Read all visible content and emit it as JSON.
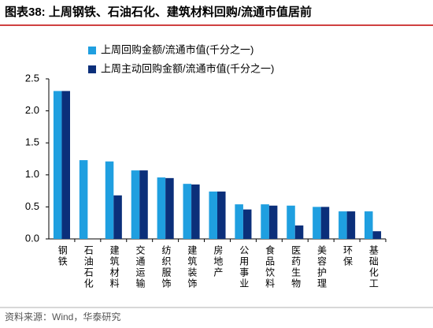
{
  "chart_data": {
    "type": "bar",
    "title": "图表38:  上周钢铁、石油石化、建筑材料回购/流通市值居前",
    "source": "资料来源：Wind，华泰研究",
    "categories": [
      "钢铁",
      "石油石化",
      "建筑材料",
      "交通运输",
      "纺织服饰",
      "建筑装饰",
      "房地产",
      "公用事业",
      "食品饮料",
      "医药生物",
      "美容护理",
      "环保",
      "基础化工"
    ],
    "series": [
      {
        "name": "上周回购金额/流通市值(千分之一)",
        "color": "#1f9fe0",
        "values": [
          2.31,
          1.23,
          1.21,
          1.07,
          0.96,
          0.86,
          0.74,
          0.54,
          0.54,
          0.52,
          0.5,
          0.43,
          0.43
        ]
      },
      {
        "name": "上周主动回购金额/流通市值(千分之一)",
        "color": "#0b2f7a",
        "values": [
          2.31,
          0,
          0.68,
          1.07,
          0.95,
          0.85,
          0.74,
          0.46,
          0.52,
          0.21,
          0.5,
          0.43,
          0.12
        ]
      }
    ],
    "ylim": [
      0,
      2.5
    ],
    "yticks": [
      {
        "value": 0,
        "label": "0.0"
      },
      0.5,
      {
        "value": 1,
        "label": "1.0"
      },
      1.5,
      {
        "value": 2,
        "label": "2.0"
      },
      2.5
    ]
  }
}
